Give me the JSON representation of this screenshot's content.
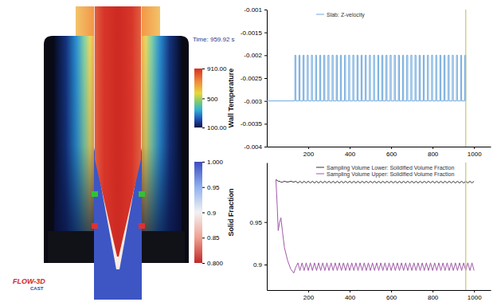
{
  "simulation": {
    "time_label": "Time: 959.92 s",
    "logo": "FLOW-3D",
    "logo_sub": "CAST"
  },
  "colorbars": [
    {
      "title": "Wall Temperature",
      "range": [
        100,
        910
      ],
      "ticks": [
        {
          "value": 910,
          "label": "910.00"
        },
        500,
        {
          "value": 100,
          "label": "100.00"
        }
      ]
    },
    {
      "title": "Solid Fraction",
      "range": [
        0.8,
        1.0
      ],
      "ticks": [
        {
          "value": 1.0,
          "label": "1.000"
        },
        0.95,
        0.9,
        0.85,
        {
          "value": 0.8,
          "label": "0.800"
        }
      ]
    }
  ],
  "chart_data": [
    {
      "type": "line",
      "legend": "top",
      "grid": false,
      "xlim": [
        0,
        1080
      ],
      "xticks": [
        200,
        400,
        600,
        800,
        1000
      ],
      "ylim": [
        -0.004,
        -0.001
      ],
      "yticks": [
        -0.004,
        -0.0035,
        -0.003,
        -0.0025,
        -0.002,
        -0.0015,
        -0.001
      ],
      "vertical_line_x": 960,
      "x": [
        0,
        135,
        135,
        140,
        140,
        155,
        155,
        160,
        160,
        175,
        175,
        180,
        180,
        195,
        195,
        200,
        200,
        215,
        215,
        220,
        220,
        235,
        235,
        240,
        240,
        255,
        255,
        260,
        260,
        275,
        275,
        280,
        280,
        295,
        295,
        300,
        300,
        315,
        315,
        320,
        320,
        335,
        335,
        340,
        340,
        355,
        355,
        360,
        360,
        375,
        375,
        380,
        380,
        395,
        395,
        400,
        400,
        415,
        415,
        420,
        420,
        435,
        435,
        440,
        440,
        455,
        455,
        460,
        460,
        475,
        475,
        480,
        480,
        495,
        495,
        500,
        500,
        515,
        515,
        520,
        520,
        535,
        535,
        540,
        540,
        555,
        555,
        560,
        560,
        575,
        575,
        580,
        580,
        595,
        595,
        600,
        600,
        615,
        615,
        620,
        620,
        635,
        635,
        640,
        640,
        655,
        655,
        660,
        660,
        675,
        675,
        680,
        680,
        695,
        695,
        700,
        700,
        715,
        715,
        720,
        720,
        735,
        735,
        740,
        740,
        755,
        755,
        760,
        760,
        775,
        775,
        780,
        780,
        795,
        795,
        800,
        800,
        815,
        815,
        820,
        820,
        835,
        835,
        840,
        840,
        855,
        855,
        860,
        860,
        875,
        875,
        880,
        880,
        895,
        895,
        900,
        900,
        915,
        915,
        920,
        920,
        935,
        935,
        940,
        940,
        955,
        955,
        960,
        960
      ],
      "series": [
        {
          "name": "Slab: Z-velocity",
          "color": "#6fa8dc",
          "values": [
            -0.003,
            -0.003,
            -0.002,
            -0.002,
            -0.003,
            -0.003,
            -0.002,
            -0.002,
            -0.003,
            -0.003,
            -0.002,
            -0.002,
            -0.003,
            -0.003,
            -0.002,
            -0.002,
            -0.003,
            -0.003,
            -0.002,
            -0.002,
            -0.003,
            -0.003,
            -0.002,
            -0.002,
            -0.003,
            -0.003,
            -0.002,
            -0.002,
            -0.003,
            -0.003,
            -0.002,
            -0.002,
            -0.003,
            -0.003,
            -0.002,
            -0.002,
            -0.003,
            -0.003,
            -0.002,
            -0.002,
            -0.003,
            -0.003,
            -0.002,
            -0.002,
            -0.003,
            -0.003,
            -0.002,
            -0.002,
            -0.003,
            -0.003,
            -0.002,
            -0.002,
            -0.003,
            -0.003,
            -0.002,
            -0.002,
            -0.003,
            -0.003,
            -0.002,
            -0.002,
            -0.003,
            -0.003,
            -0.002,
            -0.002,
            -0.003,
            -0.003,
            -0.002,
            -0.002,
            -0.003,
            -0.003,
            -0.002,
            -0.002,
            -0.003,
            -0.003,
            -0.002,
            -0.002,
            -0.003,
            -0.003,
            -0.002,
            -0.002,
            -0.003,
            -0.003,
            -0.002,
            -0.002,
            -0.003,
            -0.003,
            -0.002,
            -0.002,
            -0.003,
            -0.003,
            -0.002,
            -0.002,
            -0.003,
            -0.003,
            -0.002,
            -0.002,
            -0.003,
            -0.003,
            -0.002,
            -0.002,
            -0.003,
            -0.003,
            -0.002,
            -0.002,
            -0.003,
            -0.003,
            -0.002,
            -0.002,
            -0.003,
            -0.003,
            -0.002,
            -0.002,
            -0.003,
            -0.003,
            -0.002,
            -0.002,
            -0.003,
            -0.003,
            -0.002,
            -0.002,
            -0.003,
            -0.003,
            -0.002,
            -0.002,
            -0.003,
            -0.003,
            -0.002,
            -0.002,
            -0.003,
            -0.003,
            -0.002,
            -0.002,
            -0.003,
            -0.003,
            -0.002,
            -0.002,
            -0.003,
            -0.003,
            -0.002,
            -0.002,
            -0.003,
            -0.003,
            -0.002,
            -0.002,
            -0.003,
            -0.003,
            -0.002,
            -0.002,
            -0.003,
            -0.003,
            -0.002,
            -0.002,
            -0.003,
            -0.003,
            -0.002,
            -0.002,
            -0.003,
            -0.003,
            -0.002,
            -0.002,
            -0.003,
            -0.003,
            -0.002,
            -0.002,
            -0.003,
            -0.003,
            -0.002,
            -0.002,
            -0.003
          ]
        }
      ]
    },
    {
      "type": "line",
      "legend": "top",
      "grid": false,
      "xlim": [
        0,
        1080
      ],
      "xticks": [
        200,
        400,
        600,
        800,
        1000
      ],
      "ylim": [
        0.87,
        1.02
      ],
      "yticks": [
        0.9,
        0.95
      ],
      "vertical_line_x": 960,
      "x": [
        44,
        50,
        55,
        62,
        68,
        75,
        85,
        100,
        115,
        130,
        140,
        150,
        160,
        170,
        180,
        190,
        200,
        210,
        220,
        230,
        240,
        250,
        260,
        270,
        280,
        290,
        300,
        310,
        320,
        330,
        340,
        350,
        360,
        370,
        380,
        390,
        400,
        410,
        420,
        430,
        440,
        450,
        460,
        470,
        480,
        490,
        500,
        510,
        520,
        530,
        540,
        550,
        560,
        570,
        580,
        590,
        600,
        610,
        620,
        630,
        640,
        650,
        660,
        670,
        680,
        690,
        700,
        710,
        720,
        730,
        740,
        750,
        760,
        770,
        780,
        790,
        800,
        810,
        820,
        830,
        840,
        850,
        860,
        870,
        880,
        890,
        900,
        910,
        920,
        930,
        940,
        950,
        960,
        970,
        980,
        990,
        1000
      ],
      "series": [
        {
          "name": "Sampling Volume Lower: Solidified Volume Fraction",
          "color": "#333333",
          "values": [
            1.0,
            0.999,
            0.998,
            0.998,
            0.997,
            0.997,
            0.998,
            0.997,
            0.998,
            0.997,
            0.998,
            0.996,
            0.998,
            0.996,
            0.998,
            0.996,
            0.998,
            0.996,
            0.998,
            0.996,
            0.998,
            0.996,
            0.998,
            0.996,
            0.998,
            0.996,
            0.998,
            0.996,
            0.998,
            0.996,
            0.998,
            0.996,
            0.998,
            0.996,
            0.998,
            0.996,
            0.998,
            0.996,
            0.998,
            0.996,
            0.998,
            0.996,
            0.998,
            0.996,
            0.998,
            0.996,
            0.998,
            0.996,
            0.998,
            0.996,
            0.998,
            0.996,
            0.998,
            0.996,
            0.998,
            0.996,
            0.998,
            0.996,
            0.998,
            0.996,
            0.998,
            0.996,
            0.998,
            0.996,
            0.998,
            0.996,
            0.998,
            0.996,
            0.998,
            0.996,
            0.998,
            0.996,
            0.998,
            0.996,
            0.998,
            0.996,
            0.998,
            0.996,
            0.998,
            0.996,
            0.998,
            0.996,
            0.998,
            0.996,
            0.998,
            0.996,
            0.998,
            0.996,
            0.998,
            0.996,
            0.998,
            0.996,
            0.998,
            0.996,
            0.998,
            0.996,
            0.998
          ]
        },
        {
          "name": "Sampling Volume Upper: Solidified Volume Fraction",
          "color": "#a05aa8",
          "values": [
            1.0,
            0.97,
            0.94,
            0.95,
            0.955,
            0.94,
            0.92,
            0.905,
            0.895,
            0.89,
            0.897,
            0.902,
            0.893,
            0.902,
            0.893,
            0.902,
            0.893,
            0.902,
            0.893,
            0.902,
            0.893,
            0.902,
            0.893,
            0.902,
            0.893,
            0.902,
            0.893,
            0.902,
            0.893,
            0.902,
            0.893,
            0.902,
            0.893,
            0.902,
            0.893,
            0.902,
            0.893,
            0.902,
            0.893,
            0.902,
            0.893,
            0.902,
            0.893,
            0.902,
            0.893,
            0.902,
            0.893,
            0.902,
            0.893,
            0.902,
            0.893,
            0.902,
            0.893,
            0.902,
            0.893,
            0.902,
            0.893,
            0.902,
            0.893,
            0.902,
            0.893,
            0.902,
            0.893,
            0.902,
            0.893,
            0.902,
            0.893,
            0.902,
            0.893,
            0.902,
            0.893,
            0.902,
            0.893,
            0.902,
            0.893,
            0.902,
            0.893,
            0.902,
            0.893,
            0.902,
            0.893,
            0.902,
            0.893,
            0.902,
            0.893,
            0.902,
            0.893,
            0.902,
            0.893,
            0.902,
            0.893,
            0.902,
            0.893,
            0.902,
            0.893,
            0.902,
            0.893
          ]
        }
      ]
    }
  ]
}
